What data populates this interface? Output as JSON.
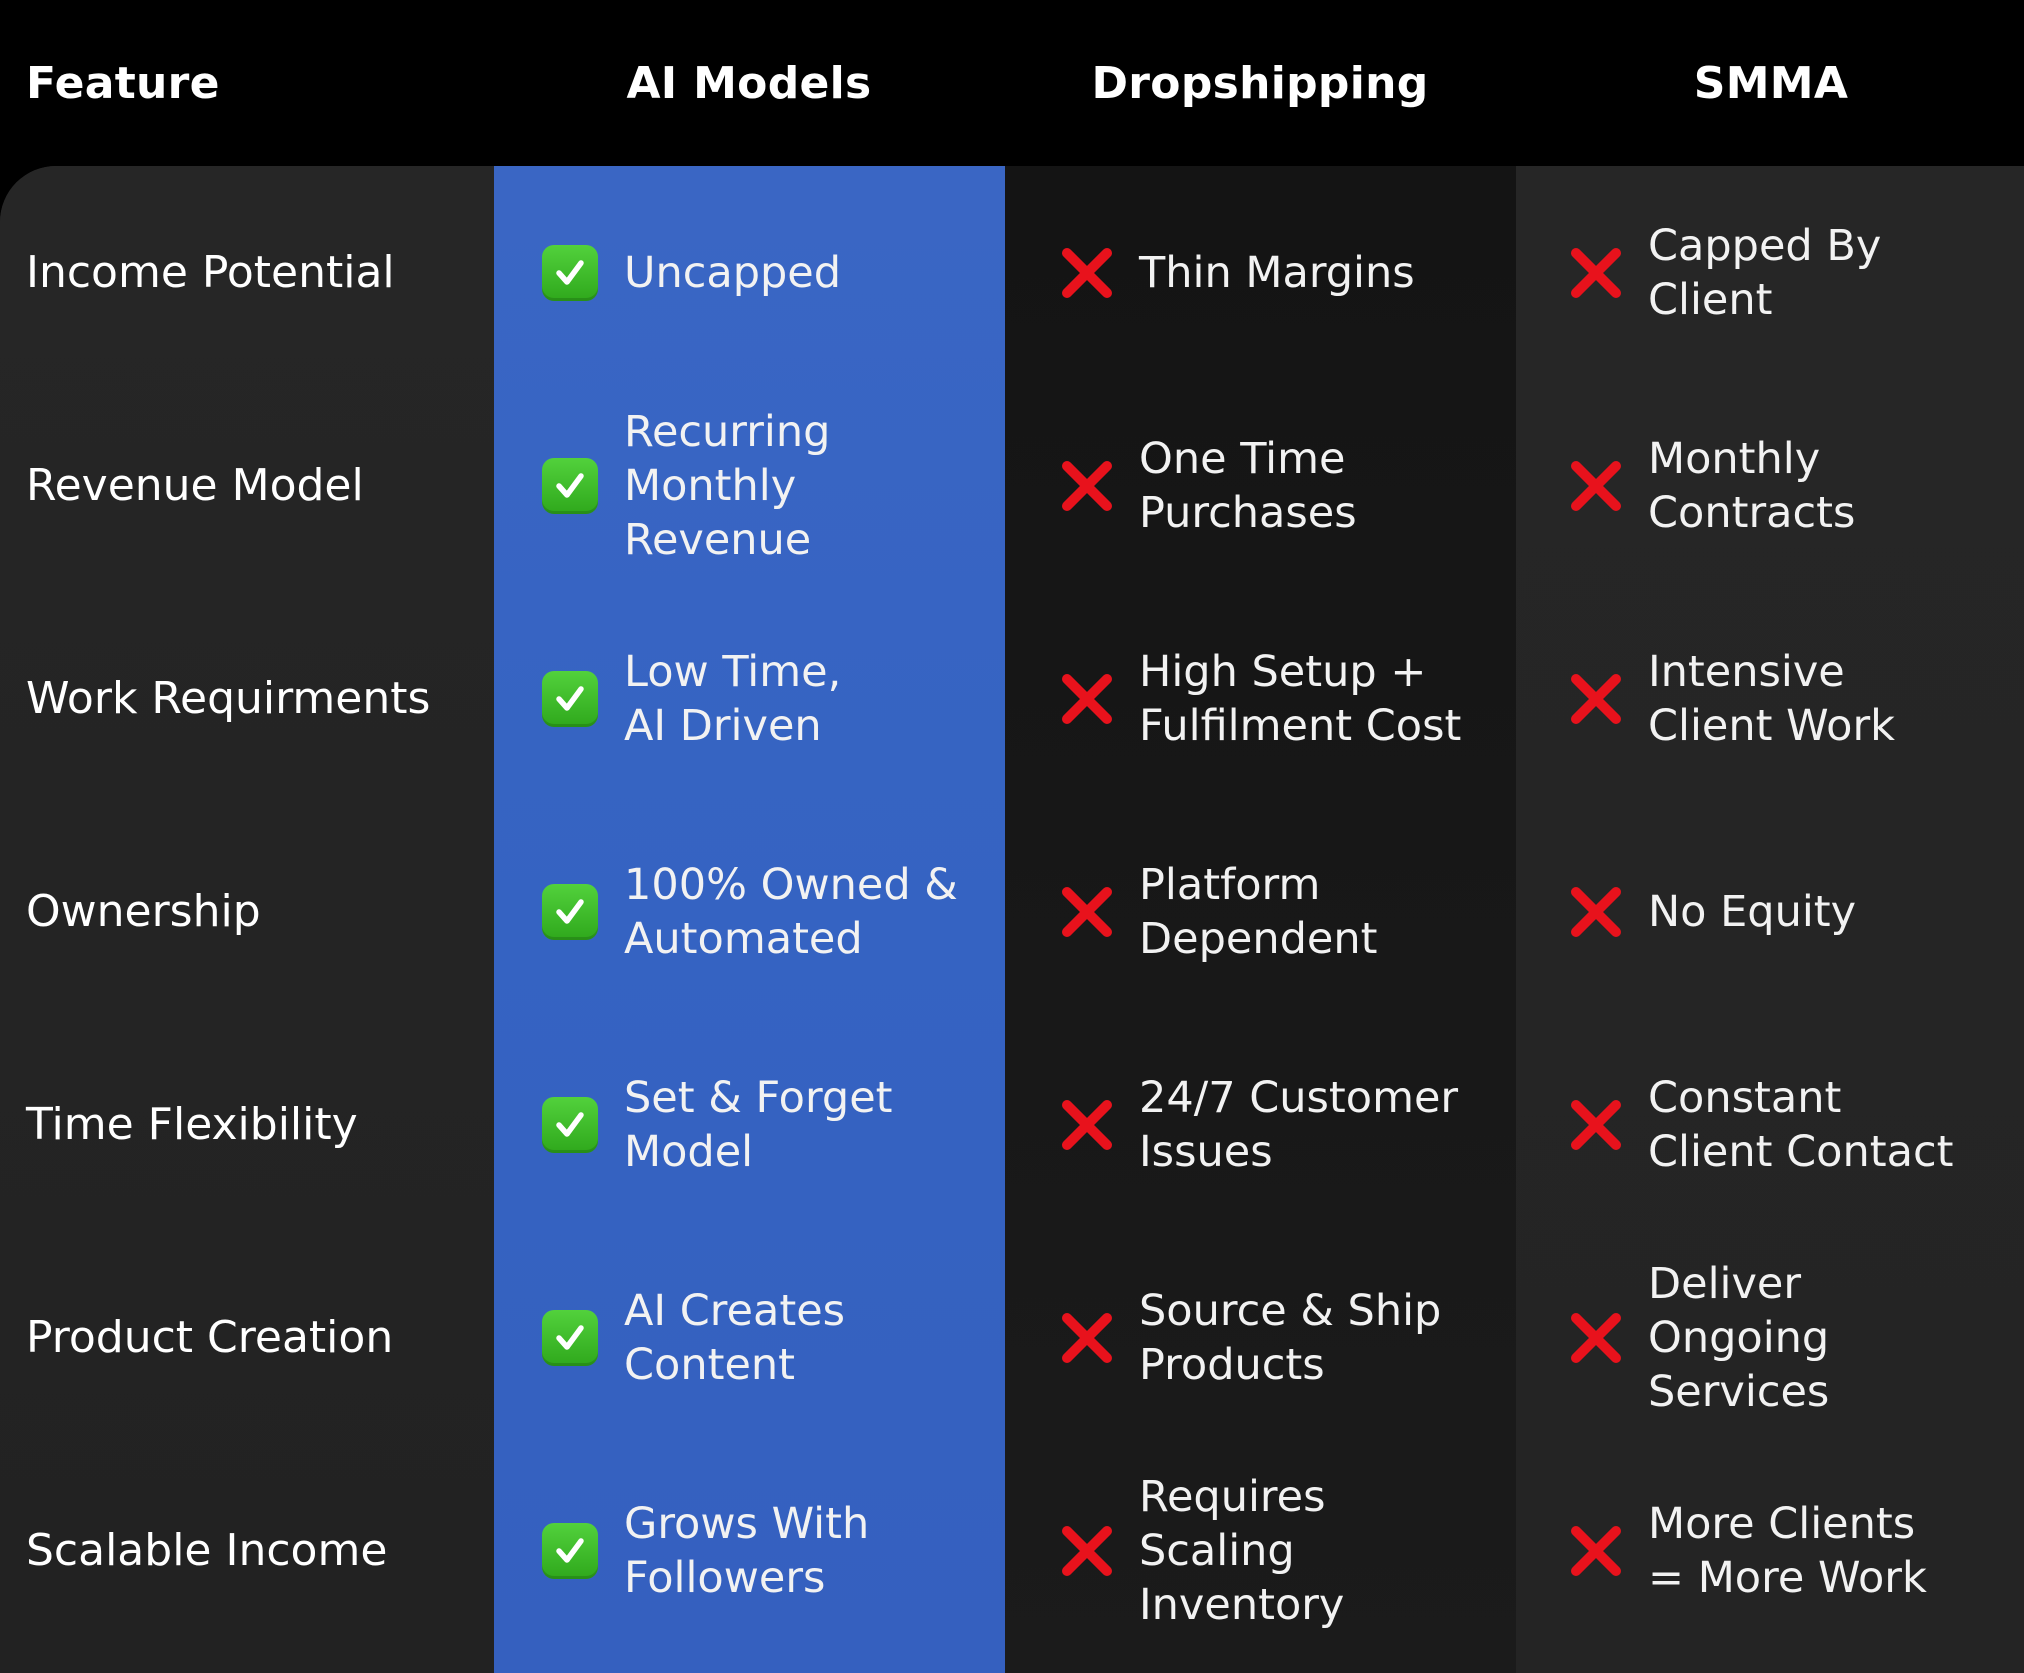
{
  "header": {
    "feature": "Feature",
    "columns": [
      "AI Models",
      "Dropshipping",
      "SMMA"
    ]
  },
  "colors": {
    "highlight_column": "#3563c2",
    "check": "#3cbf28",
    "cross": "#e8121c",
    "background": "#000000"
  },
  "icons": {
    "positive": "green-check-icon",
    "negative": "red-x-icon"
  },
  "rows": [
    {
      "feature": "Income Potential",
      "ai": "Uncapped",
      "drop": "Thin Margins",
      "smma": "Capped By\nClient"
    },
    {
      "feature": "Revenue Model",
      "ai": "Recurring\nMonthly\nRevenue",
      "drop": "One Time\nPurchases",
      "smma": "Monthly\nContracts"
    },
    {
      "feature": "Work Requirments",
      "ai": "Low Time,\nAI Driven",
      "drop": "High Setup +\nFulfilment Cost",
      "smma": "Intensive\nClient Work"
    },
    {
      "feature": "Ownership",
      "ai": "100% Owned &\nAutomated",
      "drop": "Platform\nDependent",
      "smma": "No Equity"
    },
    {
      "feature": "Time Flexibility",
      "ai": "Set & Forget\nModel",
      "drop": "24/7 Customer\nIssues",
      "smma": "Constant\nClient Contact"
    },
    {
      "feature": "Product Creation",
      "ai": "AI Creates\nContent",
      "drop": "Source & Ship\nProducts",
      "smma": "Deliver\nOngoing\nServices"
    },
    {
      "feature": "Scalable Income",
      "ai": "Grows With\nFollowers",
      "drop": "Requires\nScaling\nInventory",
      "smma": "More Clients\n= More Work"
    }
  ]
}
